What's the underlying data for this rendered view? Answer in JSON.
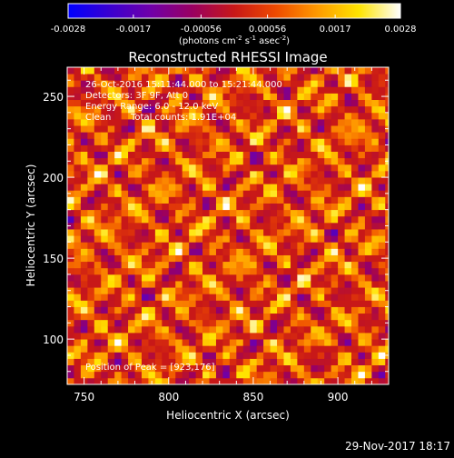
{
  "colorbar": {
    "tick_labels": [
      "-0.0028",
      "-0.0017",
      "-0.00056",
      "0.00056",
      "0.0017",
      "0.0028"
    ],
    "tick_values": [
      -0.0028,
      -0.0017,
      -0.00056,
      0.00056,
      0.0017,
      0.0028
    ],
    "range": [
      -0.0028,
      0.0028
    ],
    "units_prefix": "(photons cm",
    "units_exp1": "-2",
    "units_mid": " s",
    "units_exp2": "-1",
    "units_mid2": " asec",
    "units_exp3": "-2",
    "units_suffix": ")",
    "stops": [
      "#0000ff",
      "#3a00d0",
      "#7000a8",
      "#9a0060",
      "#c81818",
      "#ee4a00",
      "#ff9a00",
      "#ffe400",
      "#ffffff"
    ]
  },
  "chart_data": {
    "type": "heatmap",
    "title": "Reconstructed RHESSI Image",
    "xlabel": "Heliocentric X (arcsec)",
    "ylabel": "Heliocentric Y (arcsec)",
    "xlim": [
      740,
      930
    ],
    "ylim": [
      72,
      268
    ],
    "x_ticks": [
      750,
      800,
      850,
      900
    ],
    "y_ticks": [
      100,
      150,
      200,
      250
    ],
    "x_tick_labels": [
      "750",
      "800",
      "850",
      "900"
    ],
    "y_tick_labels": [
      "100",
      "150",
      "200",
      "250"
    ],
    "annotations": [
      "26-Oct-2016 15:11:44.000 to 15:21:44.000",
      "Detectors: 3F 9F, Att 0",
      "Energy Range: 6.0 - 12.0 keV",
      "Clean",
      "Total counts: 1.91E+04"
    ],
    "peak_label": "Position of Peak = [923,176]",
    "peak": [
      923,
      176
    ],
    "pixel_size_arcsec": 4,
    "value_range": [
      -0.0028,
      0.0028
    ]
  },
  "footer": {
    "timestamp": "29-Nov-2017 18:17"
  }
}
